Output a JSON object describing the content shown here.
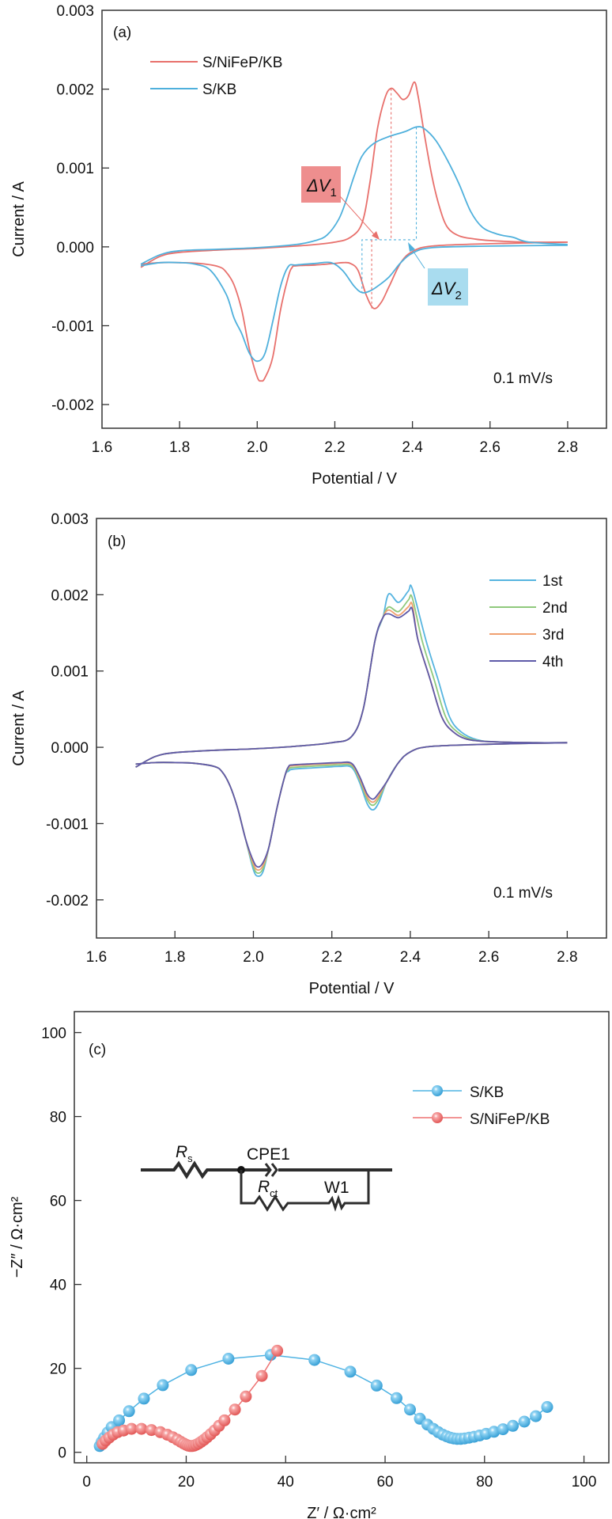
{
  "chart_data": [
    {
      "type": "line",
      "panel_label": "(a)",
      "xlabel": "Potential / V",
      "ylabel": "Current / A",
      "xlim": [
        1.6,
        2.9
      ],
      "ylim": [
        -0.0023,
        0.003
      ],
      "xticks": [
        1.6,
        1.8,
        2.0,
        2.2,
        2.4,
        2.6,
        2.8
      ],
      "xtick_labels": [
        "1.6",
        "1.8",
        "2.0",
        "2.2",
        "2.4",
        "2.6",
        "2.8"
      ],
      "yticks": [
        -0.002,
        -0.001,
        0.0,
        0.001,
        0.002,
        0.003
      ],
      "ytick_labels": [
        "-0.002",
        "-0.001",
        "0.000",
        "0.001",
        "0.002",
        "0.003"
      ],
      "legend_position": "top-left",
      "annotation": "0.1 mV/s",
      "delta_labels": [
        {
          "text": "ΔV",
          "sub": "1",
          "color": "#ee8e8e"
        },
        {
          "text": "ΔV",
          "sub": "2",
          "color": "#a9dcef"
        }
      ],
      "series": [
        {
          "name": "S/NiFeP/KB",
          "color": "#e8706c",
          "anodic": {
            "x": [
              1.7,
              1.75,
              1.8,
              1.9,
              2.0,
              2.1,
              2.15,
              2.2,
              2.24,
              2.27,
              2.29,
              2.31,
              2.33,
              2.345,
              2.36,
              2.375,
              2.39,
              2.405,
              2.415,
              2.43,
              2.45,
              2.47,
              2.49,
              2.52,
              2.56,
              2.6,
              2.7,
              2.8
            ],
            "y": [
              -0.00026,
              -0.00012,
              -7e-05,
              -4e-05,
              -2e-05,
              1e-05,
              3e-05,
              6e-05,
              0.00012,
              0.0003,
              0.0008,
              0.0015,
              0.0019,
              0.00201,
              0.00195,
              0.00187,
              0.00192,
              0.00209,
              0.0019,
              0.00145,
              0.0009,
              0.0005,
              0.00025,
              0.00014,
              0.0001,
              8e-05,
              6e-05,
              6e-05
            ]
          },
          "cathodic": {
            "x": [
              2.8,
              2.6,
              2.45,
              2.4,
              2.37,
              2.34,
              2.32,
              2.3,
              2.28,
              2.26,
              2.24,
              2.22,
              2.2,
              2.15,
              2.1,
              2.09,
              2.08,
              2.06,
              2.04,
              2.02,
              2.01,
              2.0,
              1.98,
              1.96,
              1.94,
              1.92,
              1.9,
              1.85,
              1.8,
              1.75,
              1.7
            ],
            "y": [
              6e-05,
              4e-05,
              1e-05,
              -6e-05,
              -0.0002,
              -0.0005,
              -0.0007,
              -0.00078,
              -0.0006,
              -0.0003,
              -0.00021,
              -0.0002,
              -0.00021,
              -0.00023,
              -0.00024,
              -0.00026,
              -0.00038,
              -0.0008,
              -0.0014,
              -0.00166,
              -0.0017,
              -0.00165,
              -0.0013,
              -0.0008,
              -0.00048,
              -0.00032,
              -0.00025,
              -0.00021,
              -0.0002,
              -0.0002,
              -0.00022
            ]
          }
        },
        {
          "name": "S/KB",
          "color": "#4fb0dc",
          "anodic": {
            "x": [
              1.7,
              1.75,
              1.8,
              1.9,
              2.0,
              2.1,
              2.15,
              2.18,
              2.21,
              2.23,
              2.25,
              2.27,
              2.3,
              2.34,
              2.38,
              2.41,
              2.43,
              2.46,
              2.49,
              2.52,
              2.55,
              2.58,
              2.62,
              2.66,
              2.7,
              2.8
            ],
            "y": [
              -0.00022,
              -0.0001,
              -5e-05,
              -3e-05,
              -1e-05,
              3e-05,
              8e-05,
              0.00015,
              0.00035,
              0.0006,
              0.0009,
              0.00115,
              0.00131,
              0.0014,
              0.00146,
              0.00152,
              0.0015,
              0.00135,
              0.0011,
              0.0008,
              0.00045,
              0.00025,
              0.00016,
              0.00012,
              6e-05,
              3e-05
            ]
          },
          "cathodic": {
            "x": [
              2.8,
              2.6,
              2.45,
              2.4,
              2.37,
              2.34,
              2.31,
              2.29,
              2.27,
              2.25,
              2.22,
              2.19,
              2.15,
              2.1,
              2.08,
              2.06,
              2.04,
              2.02,
              2.0,
              1.98,
              1.96,
              1.94,
              1.92,
              1.88,
              1.84,
              1.8,
              1.75,
              1.7
            ],
            "y": [
              2e-05,
              1e-05,
              -1e-05,
              -8e-05,
              -0.0002,
              -0.00038,
              -0.0005,
              -0.00056,
              -0.00058,
              -0.0005,
              -0.0003,
              -0.0002,
              -0.00021,
              -0.00023,
              -0.00025,
              -0.0005,
              -0.00095,
              -0.00135,
              -0.00145,
              -0.00135,
              -0.0011,
              -0.0009,
              -0.0006,
              -0.0003,
              -0.00022,
              -0.0002,
              -0.0002,
              -0.00024
            ]
          }
        }
      ]
    },
    {
      "type": "line",
      "panel_label": "(b)",
      "xlabel": "Potential / V",
      "ylabel": "Current / A",
      "xlim": [
        1.6,
        2.9
      ],
      "ylim": [
        -0.0025,
        0.003
      ],
      "xticks": [
        1.6,
        1.8,
        2.0,
        2.2,
        2.4,
        2.6,
        2.8
      ],
      "xtick_labels": [
        "1.6",
        "1.8",
        "2.0",
        "2.2",
        "2.4",
        "2.6",
        "2.8"
      ],
      "yticks": [
        -0.002,
        -0.001,
        0.0,
        0.001,
        0.002,
        0.003
      ],
      "ytick_labels": [
        "-0.002",
        "-0.001",
        "0.000",
        "0.001",
        "0.002",
        "0.003"
      ],
      "legend_position": "top-right",
      "annotation": "0.1 mV/s",
      "series": [
        {
          "name": "1st",
          "color": "#56b4e0",
          "anodic_peak1": 0.00201,
          "anodic_valley": 0.0019,
          "anodic_peak2": 0.00208,
          "fall_shift": 0.02,
          "cathodic_peak1": -0.00169,
          "cathodic_peak2": -0.00082,
          "plateau": -0.00025
        },
        {
          "name": "2nd",
          "color": "#8fc97c",
          "anodic_peak1": 0.00184,
          "anodic_valley": 0.00178,
          "anodic_peak2": 0.00196,
          "fall_shift": 0.01,
          "cathodic_peak1": -0.00165,
          "cathodic_peak2": -0.00076,
          "plateau": -0.00023
        },
        {
          "name": "3rd",
          "color": "#f0a070",
          "anodic_peak1": 0.0018,
          "anodic_valley": 0.00173,
          "anodic_peak2": 0.00187,
          "fall_shift": 0.0,
          "cathodic_peak1": -0.00161,
          "cathodic_peak2": -0.00072,
          "plateau": -0.00021
        },
        {
          "name": "4th",
          "color": "#5e5aa8",
          "anodic_peak1": 0.00175,
          "anodic_valley": 0.0017,
          "anodic_peak2": 0.00181,
          "fall_shift": 0.0,
          "cathodic_peak1": -0.00157,
          "cathodic_peak2": -0.00068,
          "plateau": -0.0002
        }
      ]
    },
    {
      "type": "scatter",
      "panel_label": "(c)",
      "xlabel": "Z′ / Ω·cm²",
      "ylabel": "−Z″ / Ω·cm²",
      "xlim": [
        -2.5,
        105
      ],
      "ylim": [
        -2.5,
        105
      ],
      "xticks": [
        0,
        20,
        40,
        60,
        80,
        100
      ],
      "xtick_labels": [
        "0",
        "20",
        "40",
        "60",
        "80",
        "100"
      ],
      "yticks": [
        0,
        20,
        40,
        60,
        80,
        100
      ],
      "ytick_labels": [
        "0",
        "20",
        "40",
        "60",
        "80",
        "100"
      ],
      "legend_position": "top-right",
      "inset_circuit": {
        "labels": [
          "R",
          "s",
          "CPE1",
          "R",
          "ct",
          "W1"
        ]
      },
      "series": [
        {
          "name": "S/KB",
          "color": "#4fb3e3",
          "x": [
            2.6,
            3.0,
            3.5,
            4.2,
            5.0,
            6.5,
            8.5,
            11.5,
            15.3,
            21.0,
            28.5,
            37.0,
            45.8,
            53.0,
            58.3,
            62.3,
            65.0,
            67.0,
            68.5,
            69.7,
            70.7,
            71.6,
            72.4,
            73.1,
            73.8,
            74.5,
            75.2,
            76.0,
            76.9,
            77.9,
            79.0,
            80.3,
            81.9,
            83.7,
            85.7,
            88.0,
            90.3,
            92.6
          ],
          "y": [
            1.5,
            2.5,
            3.5,
            4.7,
            6.0,
            7.6,
            9.8,
            12.8,
            16.0,
            19.6,
            22.3,
            23.2,
            22.0,
            19.2,
            15.9,
            12.9,
            10.2,
            8.0,
            6.6,
            5.6,
            4.8,
            4.2,
            3.8,
            3.5,
            3.3,
            3.2,
            3.2,
            3.3,
            3.5,
            3.7,
            4.0,
            4.4,
            4.9,
            5.5,
            6.3,
            7.3,
            8.6,
            10.8
          ]
        },
        {
          "name": "S/NiFeP/KB",
          "color": "#ee7272",
          "x": [
            3.2,
            3.8,
            4.5,
            5.3,
            6.2,
            7.4,
            9.0,
            11.0,
            13.0,
            14.8,
            16.2,
            17.3,
            18.2,
            18.9,
            19.5,
            20.0,
            20.4,
            20.8,
            21.2,
            21.6,
            22.0,
            22.5,
            23.0,
            23.6,
            24.2,
            24.9,
            25.7,
            26.6,
            27.7,
            29.8,
            32.0,
            35.2,
            38.3
          ],
          "y": [
            2.0,
            2.8,
            3.5,
            4.2,
            4.8,
            5.2,
            5.6,
            5.6,
            5.3,
            4.8,
            4.2,
            3.6,
            3.0,
            2.5,
            2.1,
            1.8,
            1.6,
            1.5,
            1.5,
            1.6,
            1.8,
            2.1,
            2.5,
            3.0,
            3.6,
            4.3,
            5.2,
            6.3,
            7.6,
            10.2,
            13.3,
            18.2,
            24.2
          ]
        }
      ]
    }
  ]
}
